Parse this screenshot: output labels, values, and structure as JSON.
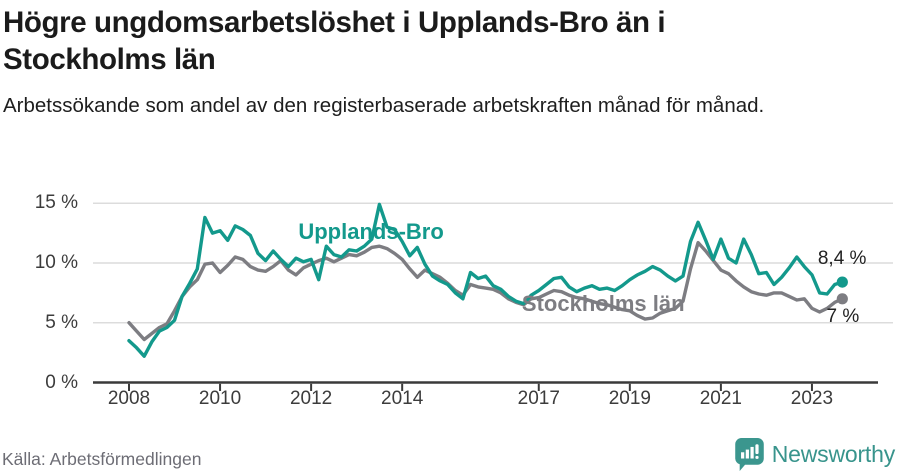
{
  "header": {
    "title": "Högre ungdomsarbetslöshet i Upplands-Bro än i Stockholms län",
    "subtitle": "Arbetssökande som andel av den registerbaserade arbetskraften månad för månad."
  },
  "footer": {
    "source": "Källa: Arbetsförmedlingen",
    "brand": "Newsworthy",
    "brand_icon": "bar-chart-speech-bubble-icon"
  },
  "colors": {
    "upplands_bro": "#13998c",
    "stockholms_lan": "#7d7d82",
    "grid": "#dcdcdc",
    "axis": "#3a3a3a",
    "end_label_text": "#222222",
    "brand_teal": "#38948c"
  },
  "chart_data": {
    "type": "line",
    "title": "Högre ungdomsarbetslöshet i Upplands-Bro än i Stockholms län",
    "subtitle": "Arbetssökande som andel av den registerbaserade arbetskraften månad för månad.",
    "x_unit": "decimal_year (monthly data, sampled every 2 months)",
    "x_range": [
      2008.0,
      2023.667
    ],
    "ylim": [
      0,
      15
    ],
    "grid": "horizontal-only",
    "legend_position": "inline-labels-on-lines",
    "yticks": [
      {
        "v": 0,
        "label": "0 %"
      },
      {
        "v": 5,
        "label": "5 %"
      },
      {
        "v": 10,
        "label": "10 %"
      },
      {
        "v": 15,
        "label": "15 %"
      }
    ],
    "xticks": [
      {
        "v": 2008,
        "label": "2008"
      },
      {
        "v": 2010,
        "label": "2010"
      },
      {
        "v": 2012,
        "label": "2012"
      },
      {
        "v": 2014,
        "label": "2014"
      },
      {
        "v": 2017,
        "label": "2017"
      },
      {
        "v": 2019,
        "label": "2019"
      },
      {
        "v": 2021,
        "label": "2021"
      },
      {
        "v": 2023,
        "label": "2023"
      }
    ],
    "x": [
      2008.0,
      2008.167,
      2008.333,
      2008.5,
      2008.667,
      2008.833,
      2009.0,
      2009.167,
      2009.333,
      2009.5,
      2009.667,
      2009.833,
      2010.0,
      2010.167,
      2010.333,
      2010.5,
      2010.667,
      2010.833,
      2011.0,
      2011.167,
      2011.333,
      2011.5,
      2011.667,
      2011.833,
      2012.0,
      2012.167,
      2012.333,
      2012.5,
      2012.667,
      2012.833,
      2013.0,
      2013.167,
      2013.333,
      2013.5,
      2013.667,
      2013.833,
      2014.0,
      2014.167,
      2014.333,
      2014.5,
      2014.667,
      2014.833,
      2015.0,
      2015.167,
      2015.333,
      2015.5,
      2015.667,
      2015.833,
      2016.0,
      2016.167,
      2016.333,
      2016.5,
      2016.667,
      2016.833,
      2017.0,
      2017.167,
      2017.333,
      2017.5,
      2017.667,
      2017.833,
      2018.0,
      2018.167,
      2018.333,
      2018.5,
      2018.667,
      2018.833,
      2019.0,
      2019.167,
      2019.333,
      2019.5,
      2019.667,
      2019.833,
      2020.0,
      2020.167,
      2020.333,
      2020.5,
      2020.667,
      2020.833,
      2021.0,
      2021.167,
      2021.333,
      2021.5,
      2021.667,
      2021.833,
      2022.0,
      2022.167,
      2022.333,
      2022.5,
      2022.667,
      2022.833,
      2023.0,
      2023.167,
      2023.333,
      2023.5,
      2023.667
    ],
    "series": [
      {
        "name": "Upplands-Bro",
        "color": "#13998c",
        "end_value_label": "8,4 %",
        "values": [
          3.5,
          2.9,
          2.2,
          3.4,
          4.3,
          4.6,
          5.2,
          7.2,
          8.3,
          9.5,
          13.8,
          12.5,
          12.7,
          11.9,
          13.1,
          12.8,
          12.3,
          10.8,
          10.2,
          11.0,
          10.3,
          9.7,
          10.4,
          10.1,
          10.3,
          8.6,
          11.4,
          10.7,
          10.5,
          11.1,
          11.0,
          11.4,
          12.0,
          14.9,
          13.0,
          12.8,
          11.8,
          10.6,
          11.3,
          9.9,
          8.9,
          8.5,
          8.2,
          7.5,
          7.0,
          9.2,
          8.7,
          8.9,
          8.1,
          7.8,
          7.2,
          6.8,
          6.6,
          7.3,
          7.7,
          8.2,
          8.7,
          8.8,
          8.0,
          7.6,
          7.9,
          8.1,
          7.8,
          7.9,
          7.7,
          8.1,
          8.6,
          9.0,
          9.3,
          9.7,
          9.4,
          8.9,
          8.5,
          8.9,
          11.8,
          13.4,
          11.9,
          10.3,
          12.0,
          10.4,
          10.0,
          12.0,
          10.7,
          9.1,
          9.2,
          8.2,
          8.8,
          9.6,
          10.5,
          9.7,
          9.0,
          7.5,
          7.4,
          8.2,
          8.4
        ]
      },
      {
        "name": "Stockholms län",
        "color": "#7d7d82",
        "end_value_label": "7 %",
        "values": [
          5.0,
          4.3,
          3.6,
          4.1,
          4.6,
          4.9,
          6.0,
          7.2,
          8.0,
          8.6,
          9.9,
          10.0,
          9.2,
          9.8,
          10.5,
          10.3,
          9.7,
          9.4,
          9.3,
          9.7,
          10.2,
          9.4,
          9.0,
          9.6,
          9.9,
          10.2,
          10.4,
          10.1,
          10.4,
          10.7,
          10.6,
          10.9,
          11.3,
          11.4,
          11.2,
          10.8,
          10.3,
          9.5,
          8.8,
          9.4,
          9.1,
          8.8,
          8.3,
          7.7,
          7.3,
          8.2,
          8.0,
          7.9,
          7.8,
          7.5,
          7.0,
          6.7,
          6.5,
          7.0,
          7.1,
          7.4,
          7.7,
          7.6,
          7.3,
          7.1,
          7.0,
          6.8,
          6.6,
          6.5,
          6.3,
          6.1,
          6.0,
          5.6,
          5.3,
          5.4,
          5.8,
          6.0,
          6.2,
          6.8,
          9.5,
          11.7,
          11.0,
          10.2,
          9.4,
          9.1,
          8.5,
          8.0,
          7.6,
          7.4,
          7.3,
          7.5,
          7.5,
          7.2,
          6.9,
          7.0,
          6.2,
          5.9,
          6.2,
          6.7,
          7.0
        ]
      }
    ],
    "annotations": [
      {
        "text": "Upplands-Bro",
        "x": 2011.72,
        "y": 12.55,
        "color": "#13998c",
        "size": 22,
        "weight": "bold"
      },
      {
        "text": "Stockholms län",
        "x": 2016.63,
        "y": 6.55,
        "color": "#7d7d82",
        "size": 22,
        "weight": "bold"
      },
      {
        "text": "8,4 %",
        "x": 2023.13,
        "y": 10.3,
        "color": "#222222",
        "size": 19,
        "weight": "normal"
      },
      {
        "text": "7 %",
        "x": 2023.32,
        "y": 5.45,
        "color": "#222222",
        "size": 19,
        "weight": "normal"
      }
    ]
  }
}
